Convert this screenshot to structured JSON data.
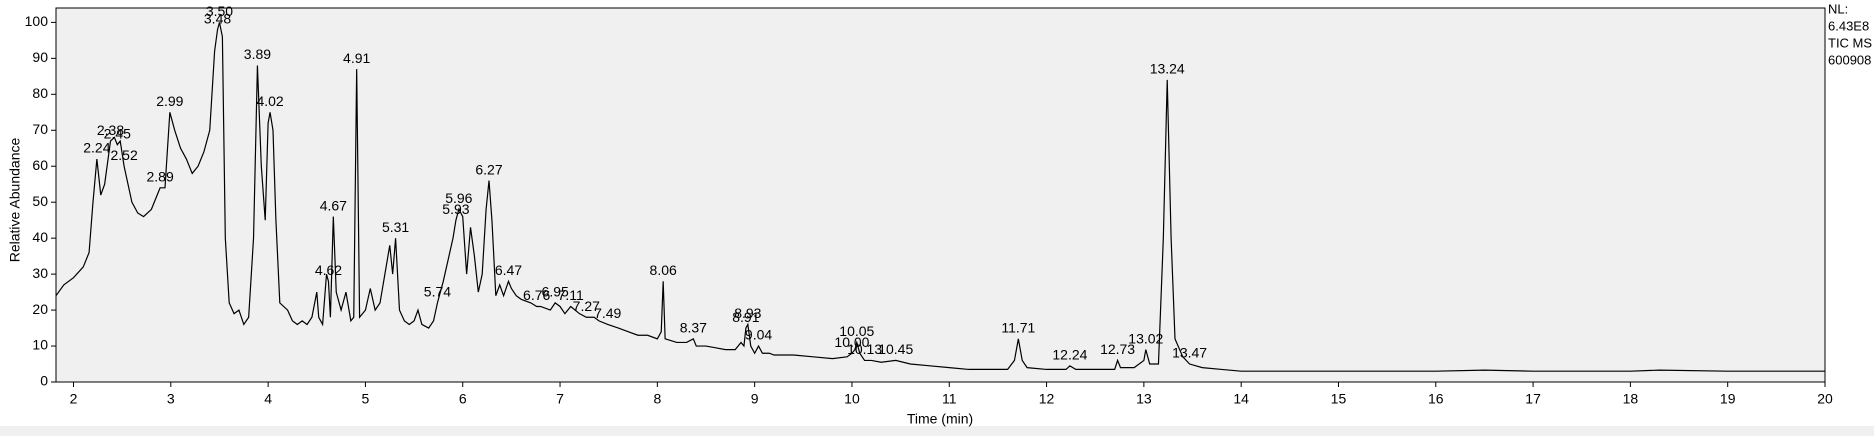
{
  "chart_data": {
    "type": "line",
    "y_label": "Relative Abundance",
    "x_label": "Time (min)",
    "info": [
      "NL:",
      "6.43E8",
      "TIC  MS",
      "600908"
    ],
    "color": "#000000",
    "xlim": [
      1.82,
      20
    ],
    "ylim": [
      0,
      104
    ],
    "xticks": [
      2,
      3,
      4,
      5,
      6,
      7,
      8,
      9,
      10,
      11,
      12,
      13,
      14,
      15,
      16,
      17,
      18,
      19,
      20
    ],
    "yticks": [
      0,
      10,
      20,
      30,
      40,
      50,
      60,
      70,
      80,
      90,
      100
    ],
    "x": [
      1.82,
      1.9,
      2.0,
      2.1,
      2.16,
      2.2,
      2.24,
      2.28,
      2.32,
      2.38,
      2.42,
      2.45,
      2.48,
      2.52,
      2.56,
      2.6,
      2.66,
      2.72,
      2.8,
      2.86,
      2.89,
      2.94,
      2.99,
      3.04,
      3.1,
      3.16,
      3.22,
      3.28,
      3.34,
      3.4,
      3.45,
      3.48,
      3.5,
      3.53,
      3.56,
      3.6,
      3.65,
      3.7,
      3.75,
      3.8,
      3.85,
      3.89,
      3.93,
      3.97,
      4.0,
      4.02,
      4.05,
      4.08,
      4.12,
      4.2,
      4.25,
      4.3,
      4.35,
      4.4,
      4.45,
      4.5,
      4.52,
      4.56,
      4.6,
      4.62,
      4.64,
      4.67,
      4.7,
      4.75,
      4.8,
      4.85,
      4.88,
      4.91,
      4.94,
      5.0,
      5.05,
      5.1,
      5.15,
      5.2,
      5.25,
      5.28,
      5.31,
      5.35,
      5.4,
      5.45,
      5.5,
      5.54,
      5.58,
      5.65,
      5.7,
      5.74,
      5.8,
      5.85,
      5.9,
      5.93,
      5.96,
      6.0,
      6.04,
      6.08,
      6.12,
      6.16,
      6.2,
      6.24,
      6.27,
      6.3,
      6.34,
      6.38,
      6.42,
      6.47,
      6.5,
      6.55,
      6.6,
      6.7,
      6.76,
      6.8,
      6.9,
      6.95,
      7.0,
      7.05,
      7.11,
      7.2,
      7.27,
      7.35,
      7.4,
      7.49,
      7.6,
      7.7,
      7.8,
      7.9,
      8.0,
      8.04,
      8.06,
      8.08,
      8.2,
      8.3,
      8.37,
      8.4,
      8.5,
      8.6,
      8.7,
      8.8,
      8.86,
      8.89,
      8.91,
      8.93,
      8.96,
      9.0,
      9.04,
      9.08,
      9.15,
      9.2,
      9.4,
      9.6,
      9.8,
      9.95,
      10.0,
      10.03,
      10.05,
      10.08,
      10.13,
      10.2,
      10.3,
      10.45,
      10.6,
      10.8,
      11.0,
      11.2,
      11.4,
      11.6,
      11.67,
      11.71,
      11.75,
      11.8,
      12.0,
      12.2,
      12.24,
      12.3,
      12.5,
      12.7,
      12.73,
      12.76,
      12.9,
      13.0,
      13.02,
      13.06,
      13.15,
      13.2,
      13.24,
      13.28,
      13.32,
      13.4,
      13.47,
      13.6,
      13.8,
      14.0,
      15,
      16,
      16.5,
      17,
      18,
      18.3,
      19,
      20
    ],
    "values": [
      24,
      27,
      29,
      32,
      36,
      50,
      62,
      52,
      55,
      67,
      68,
      66,
      67,
      60,
      55,
      50,
      47,
      46,
      48,
      52,
      54,
      54,
      75,
      70,
      65,
      62,
      58,
      60,
      64,
      70,
      92,
      98,
      100,
      96,
      40,
      22,
      19,
      20,
      16,
      18,
      40,
      88,
      60,
      45,
      72,
      75,
      70,
      45,
      22,
      20,
      17,
      16,
      17,
      16,
      18,
      25,
      18,
      16,
      30,
      28,
      18,
      46,
      25,
      20,
      25,
      17,
      18,
      87,
      18,
      20,
      26,
      20,
      22,
      30,
      38,
      30,
      40,
      20,
      17,
      16,
      17,
      20,
      16,
      15,
      17,
      22,
      28,
      34,
      40,
      45,
      48,
      46,
      30,
      43,
      35,
      25,
      30,
      48,
      56,
      45,
      24,
      27,
      24,
      28,
      26,
      24,
      23,
      22,
      21,
      21,
      20,
      22,
      21,
      19,
      21,
      19,
      18,
      18,
      17,
      16,
      15,
      14,
      13,
      13,
      12,
      14,
      28,
      12,
      11,
      11,
      12,
      10,
      10,
      9.5,
      9,
      9,
      11,
      10,
      15,
      16,
      10,
      8,
      10,
      8,
      8,
      7.5,
      7.5,
      7,
      6.5,
      7,
      8,
      9,
      11,
      8,
      6,
      6,
      5.5,
      6,
      5,
      4.5,
      4,
      3.5,
      3.5,
      3.5,
      6,
      12,
      6,
      4,
      3.5,
      3.5,
      4.5,
      3.5,
      3.5,
      3.5,
      6,
      4,
      4,
      6,
      9,
      5,
      5,
      40,
      84,
      40,
      12,
      7,
      5,
      4,
      3.5,
      3,
      3,
      3,
      3.3,
      3,
      3,
      3.3,
      3,
      3
    ],
    "peak_labels": {
      "x": [
        2.24,
        2.38,
        2.45,
        2.52,
        2.89,
        2.99,
        3.48,
        3.5,
        3.89,
        4.02,
        4.62,
        4.67,
        4.91,
        5.31,
        5.74,
        5.93,
        5.96,
        6.27,
        6.47,
        6.76,
        6.95,
        7.11,
        7.27,
        7.49,
        8.06,
        8.37,
        8.91,
        8.93,
        9.04,
        10.0,
        10.05,
        10.13,
        10.45,
        11.71,
        12.24,
        12.73,
        13.02,
        13.24,
        13.47
      ],
      "text": [
        "2.24",
        "2.38",
        "2.45",
        "2.52",
        "2.89",
        "2.99",
        "3.48",
        "3.50",
        "3.89",
        "4.02",
        "4.62",
        "4.67",
        "4.91",
        "5.31",
        "5.74",
        "5.93",
        "5.96",
        "6.27",
        "6.47",
        "6.76",
        "6.95",
        "7.11",
        "7.27",
        "7.49",
        "8.06",
        "8.37",
        "8.91",
        "8.93",
        "9.04",
        "10.00",
        "10.05",
        "10.13",
        "10.45",
        "11.71",
        "12.24",
        "12.73",
        "13.02",
        "13.24",
        "13.47"
      ]
    }
  }
}
